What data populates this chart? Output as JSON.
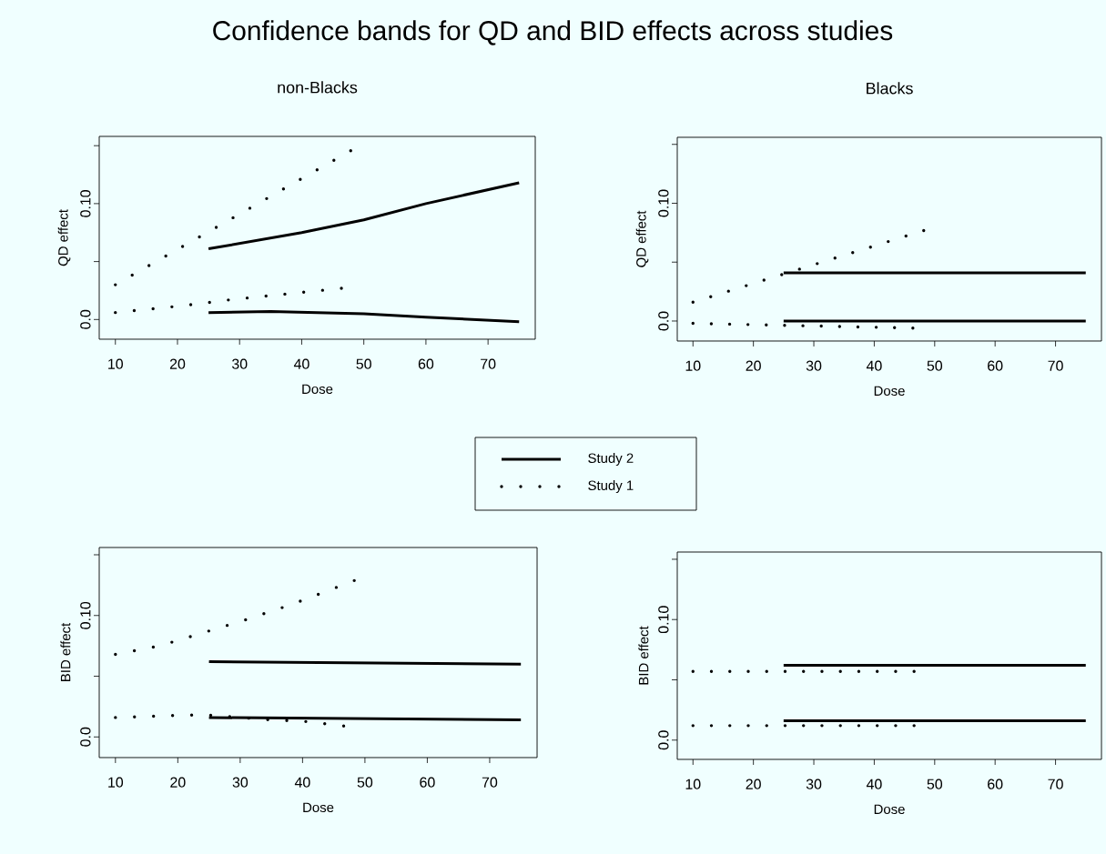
{
  "chart_data": [
    {
      "type": "line",
      "title": "Confidence bands for QD and BID effects across studies",
      "subtitle": "non-Blacks",
      "xlabel": "Dose",
      "ylabel": "QD effect",
      "xlim": [
        7.4,
        77.6
      ],
      "ylim": [
        -0.017,
        0.158
      ],
      "xticks": [
        10,
        20,
        30,
        40,
        50,
        60,
        70
      ],
      "yticks": [
        {
          "value": 0,
          "label": "0.0"
        },
        {
          "value": 0.05,
          "label": null
        },
        {
          "value": 0.1,
          "label": "0.10"
        },
        {
          "value": 0.15,
          "label": null
        }
      ],
      "grid": false,
      "legend": "bottom right",
      "series": [
        {
          "name": "Study 2",
          "color": "#000000",
          "line_style": "solid",
          "x": [
            25,
            40,
            50,
            60,
            75
          ],
          "values": [
            0.061,
            0.075,
            0.086,
            0.1,
            0.118
          ]
        },
        {
          "color": "#000000",
          "line_style": "solid",
          "x": [
            25,
            35,
            50,
            60,
            75
          ],
          "values": [
            0.006,
            0.007,
            0.005,
            0.002,
            -0.002
          ]
        },
        {
          "name": "Study 1",
          "color": "#000000",
          "line_style": "dotted",
          "x": [
            10,
            48
          ],
          "values": [
            0.03,
            0.146
          ]
        },
        {
          "color": "#000000",
          "line_style": "dotted",
          "x": [
            10,
            21,
            28.4,
            46.5
          ],
          "values": [
            0.006,
            0.012,
            0.017,
            0.027
          ]
        }
      ]
    },
    {
      "type": "line",
      "subtitle": "Blacks",
      "xlabel": "Dose",
      "ylabel": "QD effect",
      "xlim": [
        7.4,
        77.6
      ],
      "ylim": [
        -0.017,
        0.156
      ],
      "xticks": [
        10,
        20,
        30,
        40,
        50,
        60,
        70
      ],
      "yticks": [
        {
          "value": 0,
          "label": "0.0"
        },
        {
          "value": 0.05,
          "label": null
        },
        {
          "value": 0.1,
          "label": "0.10"
        },
        {
          "value": 0.15,
          "label": null
        }
      ],
      "grid": false,
      "series": [
        {
          "color": "#000000",
          "line_style": "solid",
          "x": [
            25,
            75
          ],
          "values": [
            0.041,
            0.041
          ]
        },
        {
          "color": "#000000",
          "line_style": "solid",
          "x": [
            25,
            75
          ],
          "values": [
            0.0,
            0.0
          ]
        },
        {
          "color": "#000000",
          "line_style": "dotted",
          "x": [
            10,
            48.3
          ],
          "values": [
            0.016,
            0.077
          ]
        },
        {
          "color": "#000000",
          "line_style": "dotted",
          "x": [
            10,
            46.5
          ],
          "values": [
            -0.002,
            -0.006
          ]
        }
      ]
    },
    {
      "type": "line",
      "xlabel": "Dose",
      "ylabel": "BID effect",
      "xlim": [
        7.4,
        77.6
      ],
      "ylim": [
        -0.017,
        0.156
      ],
      "xticks": [
        10,
        20,
        30,
        40,
        50,
        60,
        70
      ],
      "yticks": [
        {
          "value": 0,
          "label": "0.0"
        },
        {
          "value": 0.05,
          "label": null
        },
        {
          "value": 0.1,
          "label": "0.10"
        },
        {
          "value": 0.15,
          "label": null
        }
      ],
      "grid": false,
      "series": [
        {
          "color": "#000000",
          "line_style": "solid",
          "x": [
            25,
            75
          ],
          "values": [
            0.062,
            0.06
          ]
        },
        {
          "color": "#000000",
          "line_style": "solid",
          "x": [
            25,
            75
          ],
          "values": [
            0.016,
            0.014
          ]
        },
        {
          "color": "#000000",
          "line_style": "dotted",
          "x": [
            10,
            17.1,
            24.2,
            31.2,
            38.2,
            48.4
          ],
          "values": [
            0.068,
            0.075,
            0.086,
            0.097,
            0.109,
            0.129
          ]
        },
        {
          "color": "#000000",
          "line_style": "dotted",
          "x": [
            10,
            21,
            25,
            35,
            40,
            46.7
          ],
          "values": [
            0.016,
            0.018,
            0.018,
            0.014,
            0.013,
            0.009
          ]
        }
      ]
    },
    {
      "type": "line",
      "xlabel": "Dose",
      "ylabel": "BID effect",
      "xlim": [
        7.4,
        77.6
      ],
      "ylim": [
        -0.016,
        0.156
      ],
      "xticks": [
        10,
        20,
        30,
        40,
        50,
        60,
        70
      ],
      "yticks": [
        {
          "value": 0,
          "label": "0.0"
        },
        {
          "value": 0.05,
          "label": null
        },
        {
          "value": 0.1,
          "label": "0.10"
        },
        {
          "value": 0.15,
          "label": null
        }
      ],
      "grid": false,
      "series": [
        {
          "color": "#000000",
          "line_style": "solid",
          "x": [
            25,
            75
          ],
          "values": [
            0.062,
            0.062
          ]
        },
        {
          "color": "#000000",
          "line_style": "solid",
          "x": [
            25,
            75
          ],
          "values": [
            0.016,
            0.016
          ]
        },
        {
          "color": "#000000",
          "line_style": "dotted",
          "x": [
            10,
            46.7
          ],
          "values": [
            0.057,
            0.057
          ]
        },
        {
          "color": "#000000",
          "line_style": "dotted",
          "x": [
            10,
            46.7
          ],
          "values": [
            0.012,
            0.012
          ]
        }
      ]
    }
  ]
}
